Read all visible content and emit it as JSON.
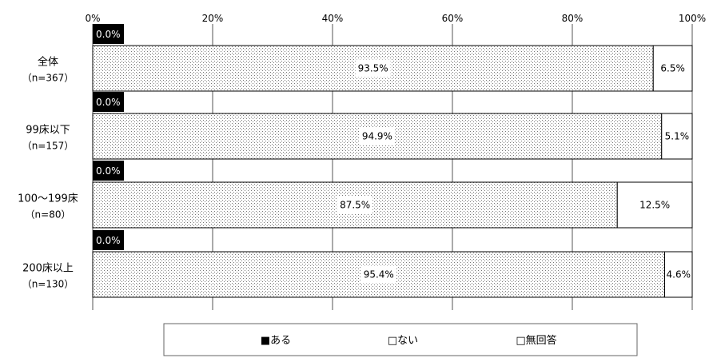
{
  "chart_data": {
    "type": "bar",
    "orientation": "horizontal",
    "stacked": true,
    "percent_stacked": true,
    "categories": [
      {
        "name": "全体",
        "n": "（n=367）"
      },
      {
        "name": "99床以下",
        "n": "（n=157）"
      },
      {
        "name": "100～199床",
        "n": "（n=80）"
      },
      {
        "name": "200床以上",
        "n": "（n=130）"
      }
    ],
    "series": [
      {
        "name": "ある",
        "values": [
          0.0,
          0.0,
          0.0,
          0.0
        ],
        "labels": [
          "0.0%",
          "0.0%",
          "0.0%",
          "0.0%"
        ],
        "color": "#000000"
      },
      {
        "name": "ない",
        "values": [
          93.5,
          94.9,
          87.5,
          95.4
        ],
        "labels": [
          "93.5%",
          "94.9%",
          "87.5%",
          "95.4%"
        ],
        "color": "#dcdcdc"
      },
      {
        "name": "無回答",
        "values": [
          6.5,
          5.1,
          12.5,
          4.6
        ],
        "labels": [
          "6.5%",
          "5.1%",
          "12.5%",
          "4.6%"
        ],
        "color": "#ffffff"
      }
    ],
    "xlim": [
      0,
      100
    ],
    "xticks": [
      "0%",
      "20%",
      "40%",
      "60%",
      "80%",
      "100%"
    ],
    "grid": true,
    "legend": {
      "position": "bottom",
      "items": [
        "■ある",
        "□ない",
        "□無回答"
      ]
    }
  }
}
